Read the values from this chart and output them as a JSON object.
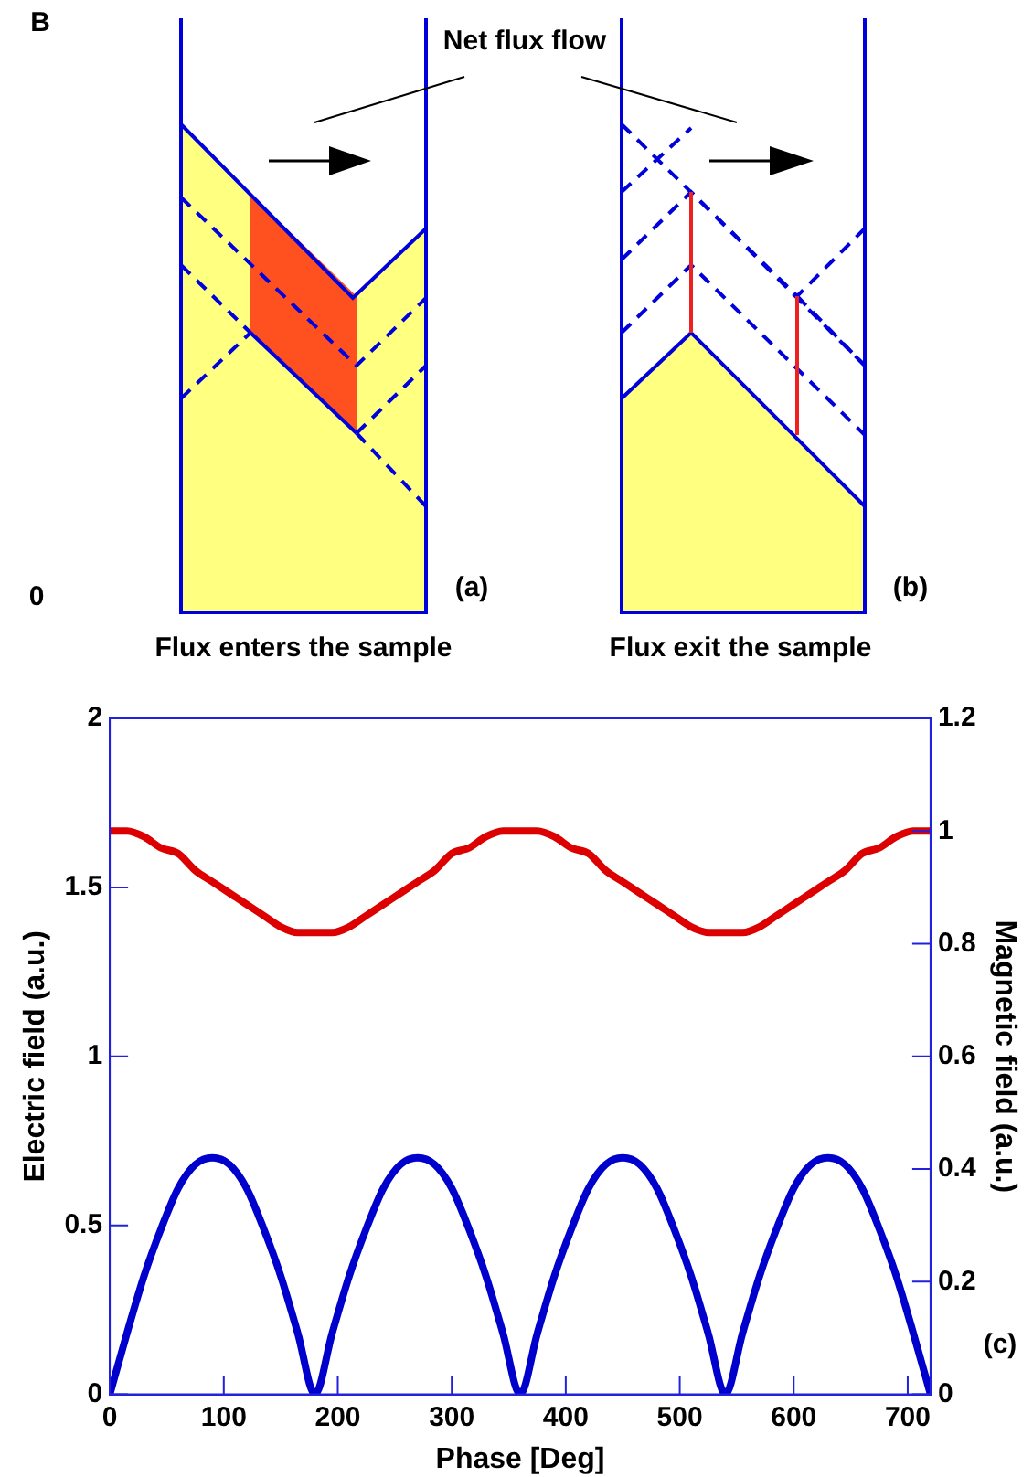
{
  "chart_data": {
    "type": "line",
    "xlabel": "Phase [Deg]",
    "ylabel": "Electric field (a.u.)",
    "y2label": "Magnetic field (a.u.)",
    "x": [
      0,
      15,
      30,
      45,
      60,
      75,
      90,
      105,
      120,
      135,
      150,
      165,
      180,
      195,
      210,
      225,
      240,
      255,
      270,
      285,
      300,
      315,
      330,
      345,
      360,
      375,
      390,
      405,
      420,
      435,
      450,
      465,
      480,
      495,
      510,
      525,
      540,
      555,
      570,
      585,
      600,
      615,
      630,
      645,
      660,
      675,
      690,
      705,
      720
    ],
    "series": [
      {
        "color": "#dd0000",
        "axis": "y2",
        "values": [
          1.0,
          1.0,
          0.99,
          0.97,
          0.96,
          0.93,
          0.91,
          0.89,
          0.87,
          0.85,
          0.83,
          0.82,
          0.82,
          0.82,
          0.83,
          0.85,
          0.87,
          0.89,
          0.91,
          0.93,
          0.96,
          0.97,
          0.99,
          1.0,
          1.0,
          1.0,
          0.99,
          0.97,
          0.96,
          0.93,
          0.91,
          0.89,
          0.87,
          0.85,
          0.83,
          0.82,
          0.82,
          0.82,
          0.83,
          0.85,
          0.87,
          0.89,
          0.91,
          0.93,
          0.96,
          0.97,
          0.99,
          1.0,
          1.0
        ]
      },
      {
        "color": "#0000cc",
        "values": [
          0,
          0.18,
          0.35,
          0.49,
          0.61,
          0.68,
          0.7,
          0.68,
          0.61,
          0.49,
          0.35,
          0.18,
          0,
          0.18,
          0.35,
          0.49,
          0.61,
          0.68,
          0.7,
          0.68,
          0.61,
          0.49,
          0.35,
          0.18,
          0,
          0.18,
          0.35,
          0.49,
          0.61,
          0.68,
          0.7,
          0.68,
          0.61,
          0.49,
          0.35,
          0.18,
          0,
          0.18,
          0.35,
          0.49,
          0.61,
          0.68,
          0.7,
          0.68,
          0.61,
          0.49,
          0.35,
          0.18,
          0
        ]
      }
    ],
    "xlim": [
      0,
      720
    ],
    "xticks": [
      0,
      100,
      200,
      300,
      400,
      500,
      600,
      700
    ],
    "ylim": [
      0,
      2
    ],
    "yticks": [
      0,
      0.5,
      1,
      1.5,
      2
    ],
    "y2lim": [
      0,
      1.2
    ],
    "y2ticks": [
      0,
      0.2,
      0.4,
      0.6,
      0.8,
      1,
      1.2
    ],
    "grid": false,
    "legend": false,
    "marker": "none",
    "line_style": "solid",
    "annotations": [
      "B",
      "0",
      "Net flux flow",
      "(a)",
      "(b)",
      "Flux enters the sample",
      "Flux exit the sample",
      "(c)"
    ]
  }
}
